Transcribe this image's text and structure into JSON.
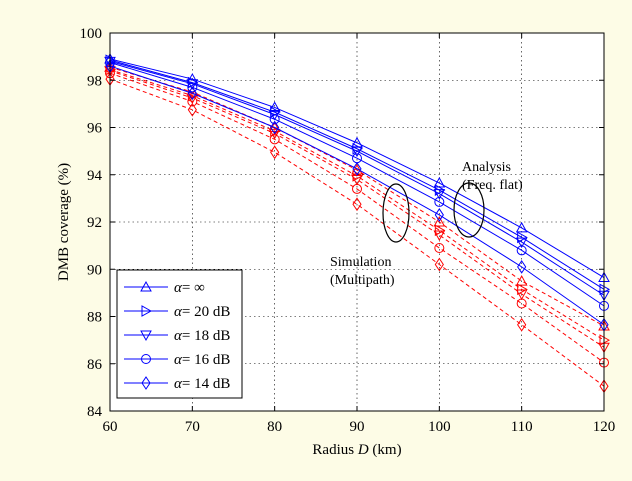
{
  "chart_data": {
    "type": "line",
    "xlabel_prefix": "Radius ",
    "xlabel_var": "D",
    "xlabel_suffix": " (km)",
    "ylabel": "DMB coverage (%)",
    "xlim": [
      60,
      120
    ],
    "ylim": [
      84,
      100
    ],
    "xticks": [
      60,
      70,
      80,
      90,
      100,
      110,
      120
    ],
    "yticks": [
      84,
      86,
      88,
      90,
      92,
      94,
      96,
      98,
      100
    ],
    "x": [
      60,
      70,
      80,
      90,
      100,
      110,
      120
    ],
    "grid": true,
    "legend_position": "bottom-left",
    "legend_symbol": "α",
    "colors": {
      "analysis": "#0000ff",
      "simulation": "#ff0000",
      "background": "#fdfce6"
    },
    "annotations": {
      "analysis_line1": "Analysis",
      "analysis_line2": "(Freq. flat)",
      "simulation_line1": "Simulation",
      "simulation_line2": "(Multipath)"
    },
    "series": [
      {
        "name": "= ∞",
        "marker": "triangle-up",
        "analysis": [
          98.9,
          98.05,
          96.85,
          95.35,
          93.65,
          91.75,
          89.65
        ],
        "simulation": [
          98.55,
          97.5,
          96.0,
          94.2,
          92.0,
          89.5,
          87.6
        ]
      },
      {
        "name": "= 20 dB",
        "marker": "triangle-right",
        "analysis": [
          98.85,
          97.9,
          96.65,
          95.1,
          93.35,
          91.35,
          89.15
        ],
        "simulation": [
          98.45,
          97.35,
          95.85,
          93.95,
          91.65,
          89.15,
          87.0
        ]
      },
      {
        "name": "= 18 dB",
        "marker": "triangle-down",
        "analysis": [
          98.8,
          97.85,
          96.55,
          95.0,
          93.2,
          91.15,
          88.9
        ],
        "simulation": [
          98.4,
          97.25,
          95.75,
          93.8,
          91.45,
          88.95,
          86.7
        ]
      },
      {
        "name": "= 16 dB",
        "marker": "circle",
        "analysis": [
          98.75,
          97.7,
          96.35,
          94.7,
          92.85,
          90.8,
          88.45
        ],
        "simulation": [
          98.3,
          97.1,
          95.5,
          93.4,
          90.9,
          88.55,
          86.05
        ]
      },
      {
        "name": "= 14 dB",
        "marker": "diamond",
        "analysis": [
          98.6,
          97.45,
          96.0,
          94.25,
          92.3,
          90.1,
          87.65
        ],
        "simulation": [
          98.05,
          96.75,
          94.95,
          92.75,
          90.2,
          87.65,
          85.05
        ]
      }
    ]
  }
}
